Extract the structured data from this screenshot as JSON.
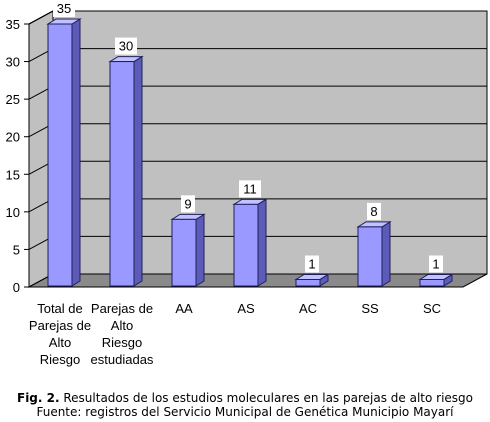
{
  "chart_data": {
    "type": "bar",
    "categories": [
      [
        "Total de",
        "Parejas de",
        "Alto",
        "Riesgo"
      ],
      [
        "Parejas de",
        "Alto",
        "Riesgo",
        "estudiadas"
      ],
      [
        "AA"
      ],
      [
        "AS"
      ],
      [
        "AC"
      ],
      [
        "SS"
      ],
      [
        "SC"
      ]
    ],
    "values": [
      35,
      30,
      9,
      11,
      1,
      8,
      1
    ],
    "data_labels": [
      "35",
      "30",
      "9",
      "11",
      "1",
      "8",
      "1"
    ],
    "ylim": [
      0,
      35
    ],
    "yticks": [
      0,
      5,
      10,
      15,
      20,
      25,
      30,
      35
    ],
    "grid": true,
    "legend": "none",
    "colors": {
      "bar_front": "#9999ff",
      "bar_side": "#5c5cb8",
      "bar_top": "#c2c2ff",
      "bar_outline": "#1f1f5c",
      "wall": "#c0c0c0",
      "floor": "#8a8a8a",
      "gridline": "#000000"
    }
  },
  "caption": {
    "fig_label": "Fig. 2.",
    "text": " Resultados de los estudios moleculares en las parejas de alto riesgo",
    "source": "Fuente: registros del Servicio Municipal de Genética Municipio Mayarí"
  }
}
